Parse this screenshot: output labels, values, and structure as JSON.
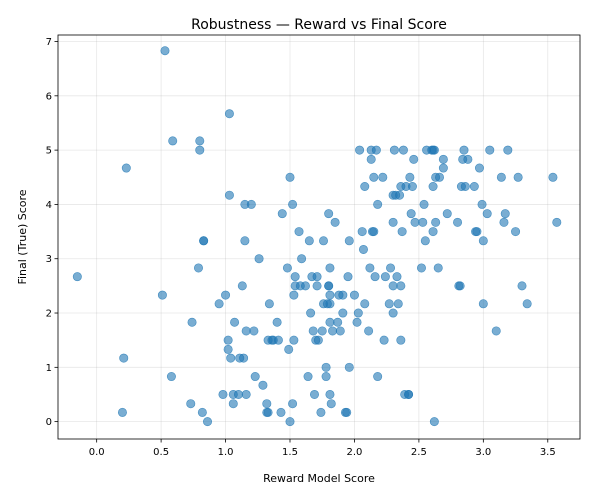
{
  "chart_data": {
    "type": "scatter",
    "title": "Robustness — Reward vs Final Score",
    "xlabel": "Reward Model Score",
    "ylabel": "Final (True) Score",
    "xlim": [
      -0.3,
      3.75
    ],
    "ylim": [
      -0.32,
      7.12
    ],
    "xticks": [
      "0.0",
      "0.5",
      "1.0",
      "1.5",
      "2.0",
      "2.5",
      "3.0",
      "3.5"
    ],
    "yticks": [
      "0",
      "1",
      "2",
      "3",
      "4",
      "5",
      "6",
      "7"
    ],
    "grid": true,
    "legend": "none",
    "marker_color": "#1f77b4",
    "marker_alpha": 0.6,
    "points": [
      [
        -0.15,
        2.67
      ],
      [
        0.2,
        0.17
      ],
      [
        0.21,
        1.17
      ],
      [
        0.23,
        4.67
      ],
      [
        0.51,
        2.33
      ],
      [
        0.53,
        6.83
      ],
      [
        0.58,
        0.83
      ],
      [
        0.59,
        5.17
      ],
      [
        0.73,
        0.33
      ],
      [
        0.74,
        1.83
      ],
      [
        0.79,
        2.83
      ],
      [
        0.8,
        5.0
      ],
      [
        0.8,
        5.17
      ],
      [
        0.82,
        0.17
      ],
      [
        0.83,
        3.33
      ],
      [
        0.83,
        3.33
      ],
      [
        0.86,
        0.0
      ],
      [
        0.95,
        2.17
      ],
      [
        0.98,
        0.5
      ],
      [
        1.0,
        2.33
      ],
      [
        1.02,
        1.5
      ],
      [
        1.02,
        1.33
      ],
      [
        1.03,
        4.17
      ],
      [
        1.03,
        5.67
      ],
      [
        1.04,
        1.17
      ],
      [
        1.06,
        0.33
      ],
      [
        1.06,
        0.5
      ],
      [
        1.07,
        1.83
      ],
      [
        1.1,
        0.5
      ],
      [
        1.11,
        1.17
      ],
      [
        1.13,
        2.5
      ],
      [
        1.14,
        1.17
      ],
      [
        1.15,
        3.33
      ],
      [
        1.15,
        4.0
      ],
      [
        1.16,
        0.5
      ],
      [
        1.16,
        1.67
      ],
      [
        1.2,
        4.0
      ],
      [
        1.22,
        1.67
      ],
      [
        1.23,
        0.83
      ],
      [
        1.26,
        3.0
      ],
      [
        1.29,
        0.67
      ],
      [
        1.32,
        0.17
      ],
      [
        1.32,
        0.33
      ],
      [
        1.33,
        0.17
      ],
      [
        1.33,
        1.5
      ],
      [
        1.34,
        2.17
      ],
      [
        1.36,
        1.5
      ],
      [
        1.37,
        1.5
      ],
      [
        1.4,
        1.83
      ],
      [
        1.41,
        1.5
      ],
      [
        1.43,
        0.17
      ],
      [
        1.44,
        3.83
      ],
      [
        1.48,
        2.83
      ],
      [
        1.49,
        1.33
      ],
      [
        1.5,
        4.5
      ],
      [
        1.5,
        0.0
      ],
      [
        1.52,
        4.0
      ],
      [
        1.52,
        0.33
      ],
      [
        1.53,
        2.33
      ],
      [
        1.53,
        1.5
      ],
      [
        1.54,
        2.5
      ],
      [
        1.54,
        2.67
      ],
      [
        1.57,
        3.5
      ],
      [
        1.58,
        2.5
      ],
      [
        1.59,
        3.0
      ],
      [
        1.62,
        2.5
      ],
      [
        1.64,
        0.83
      ],
      [
        1.65,
        3.33
      ],
      [
        1.66,
        2.0
      ],
      [
        1.67,
        2.67
      ],
      [
        1.68,
        1.67
      ],
      [
        1.69,
        0.5
      ],
      [
        1.7,
        1.5
      ],
      [
        1.71,
        2.67
      ],
      [
        1.71,
        2.5
      ],
      [
        1.72,
        1.5
      ],
      [
        1.74,
        0.17
      ],
      [
        1.75,
        1.67
      ],
      [
        1.76,
        3.33
      ],
      [
        1.76,
        2.17
      ],
      [
        1.78,
        1.0
      ],
      [
        1.78,
        0.83
      ],
      [
        1.79,
        2.17
      ],
      [
        1.8,
        3.83
      ],
      [
        1.8,
        2.5
      ],
      [
        1.8,
        2.5
      ],
      [
        1.81,
        2.83
      ],
      [
        1.81,
        2.33
      ],
      [
        1.81,
        2.17
      ],
      [
        1.81,
        1.83
      ],
      [
        1.81,
        0.5
      ],
      [
        1.82,
        0.33
      ],
      [
        1.83,
        1.67
      ],
      [
        1.85,
        3.67
      ],
      [
        1.87,
        1.83
      ],
      [
        1.88,
        2.33
      ],
      [
        1.89,
        1.67
      ],
      [
        1.91,
        2.33
      ],
      [
        1.91,
        2.0
      ],
      [
        1.93,
        0.17
      ],
      [
        1.94,
        0.17
      ],
      [
        1.95,
        2.67
      ],
      [
        1.96,
        1.0
      ],
      [
        1.96,
        3.33
      ],
      [
        2.0,
        2.33
      ],
      [
        2.02,
        1.83
      ],
      [
        2.03,
        2.0
      ],
      [
        2.04,
        5.0
      ],
      [
        2.06,
        3.5
      ],
      [
        2.07,
        3.17
      ],
      [
        2.08,
        2.17
      ],
      [
        2.08,
        4.33
      ],
      [
        2.11,
        1.67
      ],
      [
        2.12,
        2.83
      ],
      [
        2.13,
        5.0
      ],
      [
        2.13,
        4.83
      ],
      [
        2.14,
        3.5
      ],
      [
        2.15,
        3.5
      ],
      [
        2.15,
        4.5
      ],
      [
        2.16,
        2.67
      ],
      [
        2.17,
        5.0
      ],
      [
        2.18,
        4.0
      ],
      [
        2.18,
        0.83
      ],
      [
        2.22,
        4.5
      ],
      [
        2.23,
        1.5
      ],
      [
        2.24,
        2.67
      ],
      [
        2.27,
        2.17
      ],
      [
        2.28,
        2.83
      ],
      [
        2.3,
        2.0
      ],
      [
        2.3,
        2.5
      ],
      [
        2.3,
        4.17
      ],
      [
        2.3,
        3.67
      ],
      [
        2.31,
        5.0
      ],
      [
        2.32,
        4.17
      ],
      [
        2.33,
        2.67
      ],
      [
        2.34,
        2.17
      ],
      [
        2.35,
        4.17
      ],
      [
        2.36,
        1.5
      ],
      [
        2.36,
        4.33
      ],
      [
        2.36,
        2.5
      ],
      [
        2.37,
        3.5
      ],
      [
        2.38,
        5.0
      ],
      [
        2.39,
        0.5
      ],
      [
        2.4,
        4.33
      ],
      [
        2.42,
        0.5
      ],
      [
        2.42,
        0.5
      ],
      [
        2.43,
        4.5
      ],
      [
        2.44,
        3.83
      ],
      [
        2.45,
        4.33
      ],
      [
        2.46,
        4.83
      ],
      [
        2.47,
        3.67
      ],
      [
        2.52,
        2.83
      ],
      [
        2.53,
        3.67
      ],
      [
        2.54,
        4.0
      ],
      [
        2.55,
        3.33
      ],
      [
        2.56,
        5.0
      ],
      [
        2.6,
        5.0
      ],
      [
        2.61,
        5.0
      ],
      [
        2.61,
        4.33
      ],
      [
        2.61,
        3.5
      ],
      [
        2.62,
        5.0
      ],
      [
        2.62,
        0.0
      ],
      [
        2.63,
        4.5
      ],
      [
        2.63,
        3.67
      ],
      [
        2.65,
        2.83
      ],
      [
        2.66,
        4.5
      ],
      [
        2.69,
        4.83
      ],
      [
        2.69,
        4.67
      ],
      [
        2.72,
        3.83
      ],
      [
        2.8,
        3.67
      ],
      [
        2.81,
        2.5
      ],
      [
        2.82,
        2.5
      ],
      [
        2.83,
        4.33
      ],
      [
        2.84,
        4.83
      ],
      [
        2.85,
        5.0
      ],
      [
        2.86,
        4.33
      ],
      [
        2.88,
        4.83
      ],
      [
        2.93,
        4.33
      ],
      [
        2.94,
        3.5
      ],
      [
        2.95,
        3.5
      ],
      [
        2.97,
        4.67
      ],
      [
        2.99,
        4.0
      ],
      [
        3.0,
        2.17
      ],
      [
        3.0,
        3.33
      ],
      [
        3.03,
        3.83
      ],
      [
        3.05,
        5.0
      ],
      [
        3.1,
        1.67
      ],
      [
        3.14,
        4.5
      ],
      [
        3.16,
        3.67
      ],
      [
        3.17,
        3.83
      ],
      [
        3.19,
        5.0
      ],
      [
        3.25,
        3.5
      ],
      [
        3.27,
        4.5
      ],
      [
        3.3,
        2.5
      ],
      [
        3.34,
        2.17
      ],
      [
        3.54,
        4.5
      ],
      [
        3.57,
        3.67
      ]
    ]
  }
}
